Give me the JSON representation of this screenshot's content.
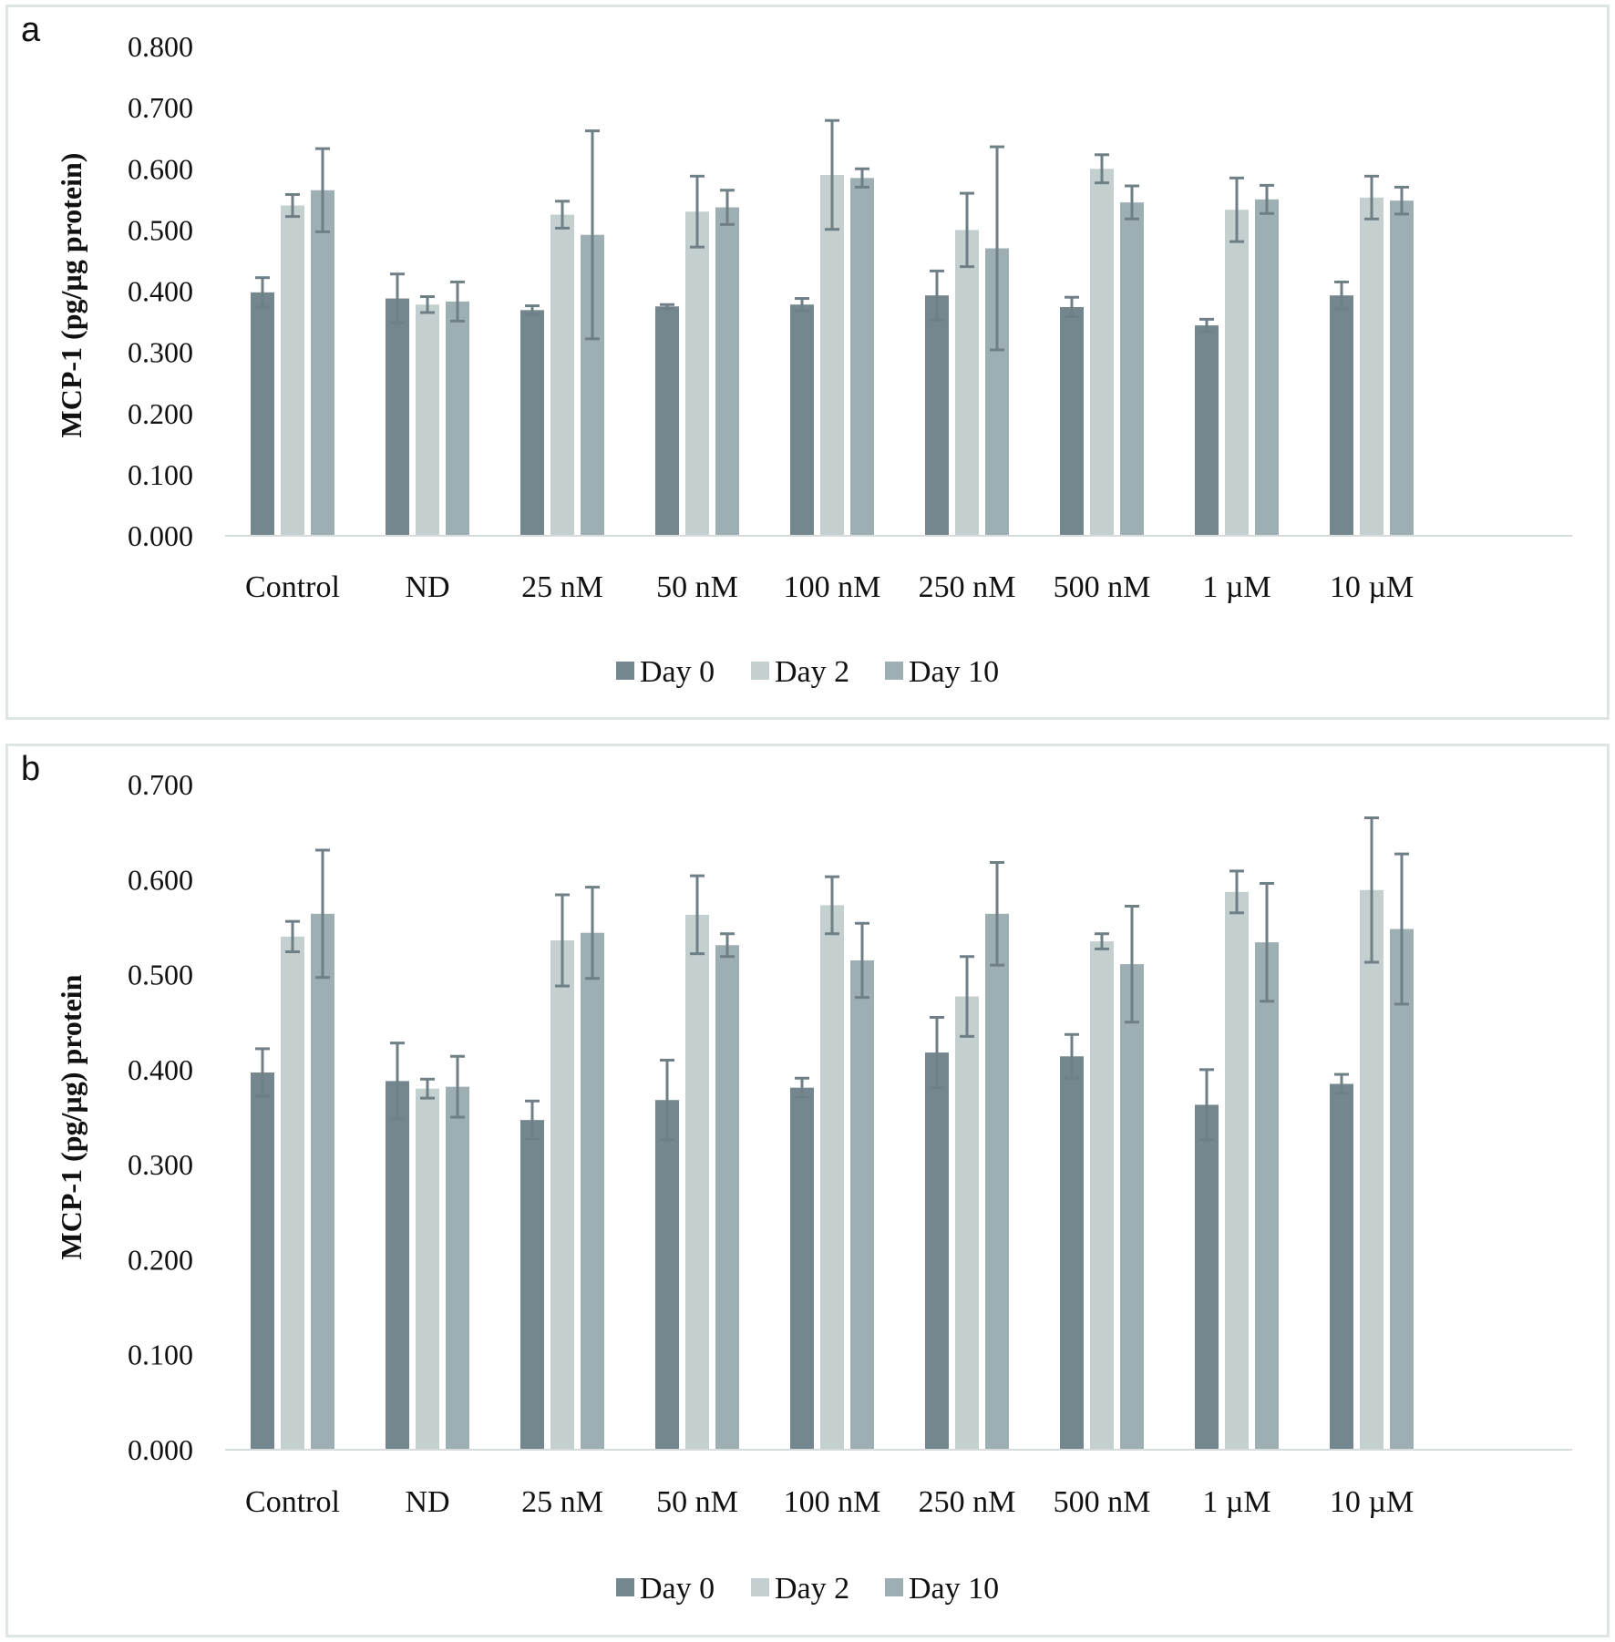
{
  "colors": {
    "Day 0": "#75878e",
    "Day 2": "#c4cfcf",
    "Day 10": "#9eafb3",
    "error_bar": "#6f7f86",
    "axis": "#d6dcdc"
  },
  "chart_data": [
    {
      "panel": "a",
      "type": "bar",
      "ylabel": "MCP-1 (pg/µg protein)",
      "ylim": [
        0,
        0.8
      ],
      "yticks": [
        "0.000",
        "0.100",
        "0.200",
        "0.300",
        "0.400",
        "0.500",
        "0.600",
        "0.700",
        "0.800"
      ],
      "grid": false,
      "legend_position": "bottom",
      "categories": [
        "Control",
        "ND",
        "25 nM",
        "50 nM",
        "100 nM",
        "250 nM",
        "500 nM",
        "1 µM",
        "10 µM"
      ],
      "series": [
        {
          "name": "Day 0",
          "values": [
            0.398,
            0.388,
            0.369,
            0.375,
            0.378,
            0.393,
            0.374,
            0.344,
            0.393
          ],
          "errors": [
            0.024,
            0.04,
            0.007,
            0.003,
            0.01,
            0.04,
            0.016,
            0.01,
            0.022
          ]
        },
        {
          "name": "Day 2",
          "values": [
            0.54,
            0.378,
            0.525,
            0.53,
            0.59,
            0.5,
            0.6,
            0.533,
            0.553
          ],
          "errors": [
            0.018,
            0.013,
            0.022,
            0.058,
            0.089,
            0.06,
            0.023,
            0.052,
            0.035
          ]
        },
        {
          "name": "Day 10",
          "values": [
            0.565,
            0.383,
            0.492,
            0.537,
            0.585,
            0.47,
            0.545,
            0.55,
            0.548
          ],
          "errors": [
            0.068,
            0.032,
            0.17,
            0.028,
            0.015,
            0.166,
            0.027,
            0.023,
            0.022
          ]
        }
      ]
    },
    {
      "panel": "b",
      "type": "bar",
      "ylabel": "MCP-1 (pg/µg) protein",
      "ylim": [
        0,
        0.7
      ],
      "yticks": [
        "0.000",
        "0.100",
        "0.200",
        "0.300",
        "0.400",
        "0.500",
        "0.600",
        "0.700"
      ],
      "grid": false,
      "legend_position": "bottom",
      "categories": [
        "Control",
        "ND",
        "25 nM",
        "50 nM",
        "100 nM",
        "250 nM",
        "500 nM",
        "1 µM",
        "10 µM"
      ],
      "series": [
        {
          "name": "Day 0",
          "values": [
            0.397,
            0.388,
            0.347,
            0.368,
            0.381,
            0.418,
            0.414,
            0.363,
            0.385
          ],
          "errors": [
            0.025,
            0.04,
            0.02,
            0.042,
            0.01,
            0.037,
            0.023,
            0.037,
            0.01
          ]
        },
        {
          "name": "Day 2",
          "values": [
            0.54,
            0.38,
            0.536,
            0.563,
            0.573,
            0.477,
            0.535,
            0.587,
            0.589
          ],
          "errors": [
            0.016,
            0.01,
            0.048,
            0.041,
            0.03,
            0.042,
            0.008,
            0.022,
            0.076
          ]
        },
        {
          "name": "Day 10",
          "values": [
            0.564,
            0.382,
            0.544,
            0.531,
            0.515,
            0.564,
            0.511,
            0.534,
            0.548
          ],
          "errors": [
            0.067,
            0.032,
            0.048,
            0.012,
            0.039,
            0.054,
            0.061,
            0.062,
            0.079
          ]
        }
      ]
    }
  ],
  "panels": [
    "a",
    "b"
  ]
}
